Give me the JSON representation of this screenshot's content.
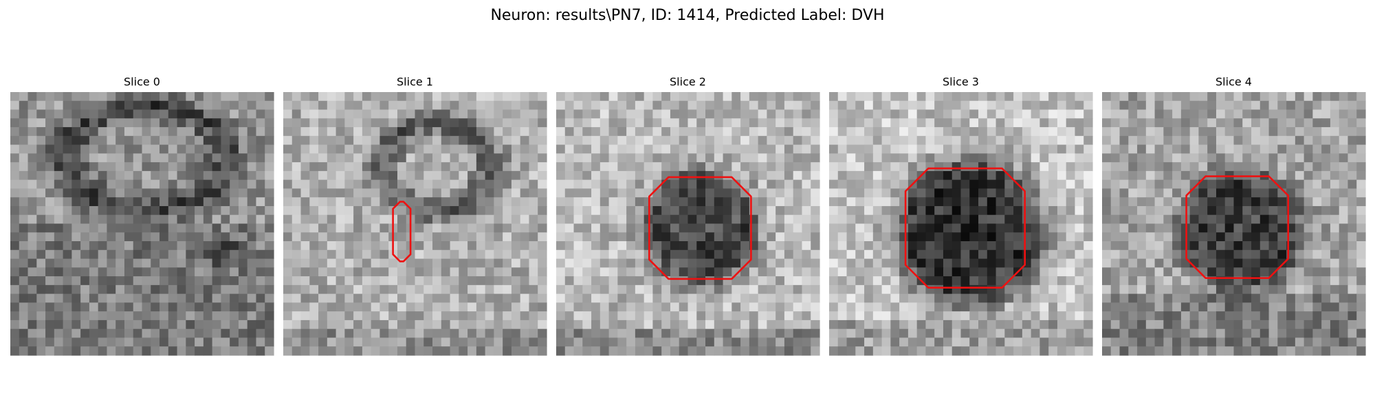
{
  "title": "Neuron: results\\PN7, ID: 1414, Predicted Label: DVH",
  "panels": [
    {
      "title": "Slice 0"
    },
    {
      "title": "Slice 1"
    },
    {
      "title": "Slice 2"
    },
    {
      "title": "Slice 3"
    },
    {
      "title": "Slice 4"
    }
  ]
}
